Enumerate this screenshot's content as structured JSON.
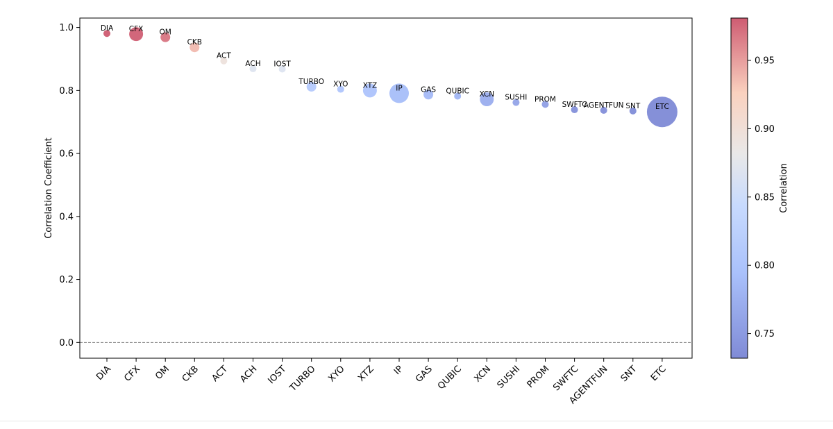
{
  "chart_data": {
    "type": "scatter",
    "title": "",
    "xlabel": "",
    "ylabel": "Correlation Coefficient",
    "ylim": [
      -0.05,
      1.03
    ],
    "yticks": [
      "0.0",
      "0.2",
      "0.4",
      "0.6",
      "0.8",
      "1.0"
    ],
    "reference_line": 0.0,
    "grid": false,
    "categories": [
      "DIA",
      "CFX",
      "OM",
      "CKB",
      "ACT",
      "ACH",
      "IOST",
      "TURBO",
      "XYO",
      "XTZ",
      "IP",
      "GAS",
      "QUBIC",
      "XCN",
      "SUSHI",
      "PROM",
      "SWFTC",
      "AGENTFUN",
      "SNT",
      "ETC"
    ],
    "values": [
      0.981,
      0.979,
      0.969,
      0.937,
      0.894,
      0.869,
      0.868,
      0.812,
      0.804,
      0.8,
      0.791,
      0.787,
      0.782,
      0.772,
      0.762,
      0.756,
      0.739,
      0.737,
      0.735,
      0.732
    ],
    "marker_size_rank": [
      1,
      3,
      2,
      2,
      1,
      1,
      1,
      2,
      1,
      3,
      4,
      2,
      1,
      3,
      1,
      1,
      1,
      1,
      1,
      8
    ],
    "colorbar": {
      "label": "Correlation",
      "range": [
        0.732,
        0.981
      ],
      "ticks": [
        "0.75",
        "0.80",
        "0.85",
        "0.90",
        "0.95"
      ],
      "colormap": "coolwarm",
      "colors": [
        "#3b4cc0",
        "#aac7fd",
        "#dddcdc",
        "#f7b89c",
        "#b40426"
      ]
    }
  }
}
